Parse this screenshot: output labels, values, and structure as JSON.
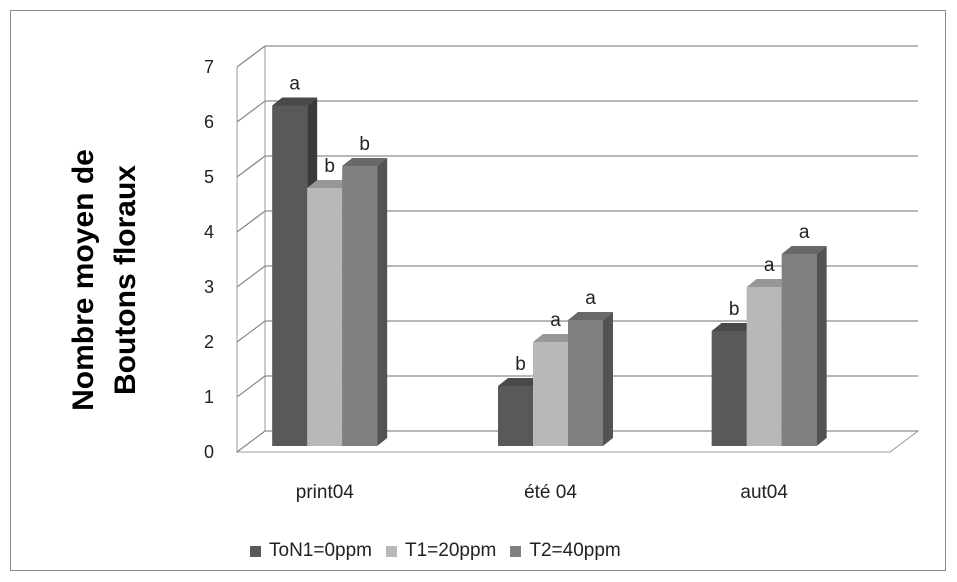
{
  "chart_data": {
    "type": "bar",
    "subtype": "3d-clustered-column",
    "categories": [
      "print04",
      "été 04",
      "aut04"
    ],
    "series": [
      {
        "name": "ToN1=0ppm",
        "color": "#595959",
        "values": [
          6.3,
          1.2,
          2.2
        ],
        "labels": [
          "a",
          "b",
          "b"
        ]
      },
      {
        "name": "T1=20ppm",
        "color": "#b8b8b8",
        "values": [
          4.8,
          2.0,
          3.0
        ],
        "labels": [
          "b",
          "a",
          "a"
        ]
      },
      {
        "name": "T2=40ppm",
        "color": "#808080",
        "values": [
          5.2,
          2.4,
          3.6
        ],
        "labels": [
          "b",
          "a",
          "a"
        ]
      }
    ],
    "ylabel": "Nombre moyen de Boutons floraux",
    "yticks": [
      "0",
      "1",
      "2",
      "3",
      "4",
      "5",
      "6",
      "7"
    ],
    "ylim": [
      0,
      7
    ],
    "grid": true,
    "legend_position": "bottom"
  }
}
